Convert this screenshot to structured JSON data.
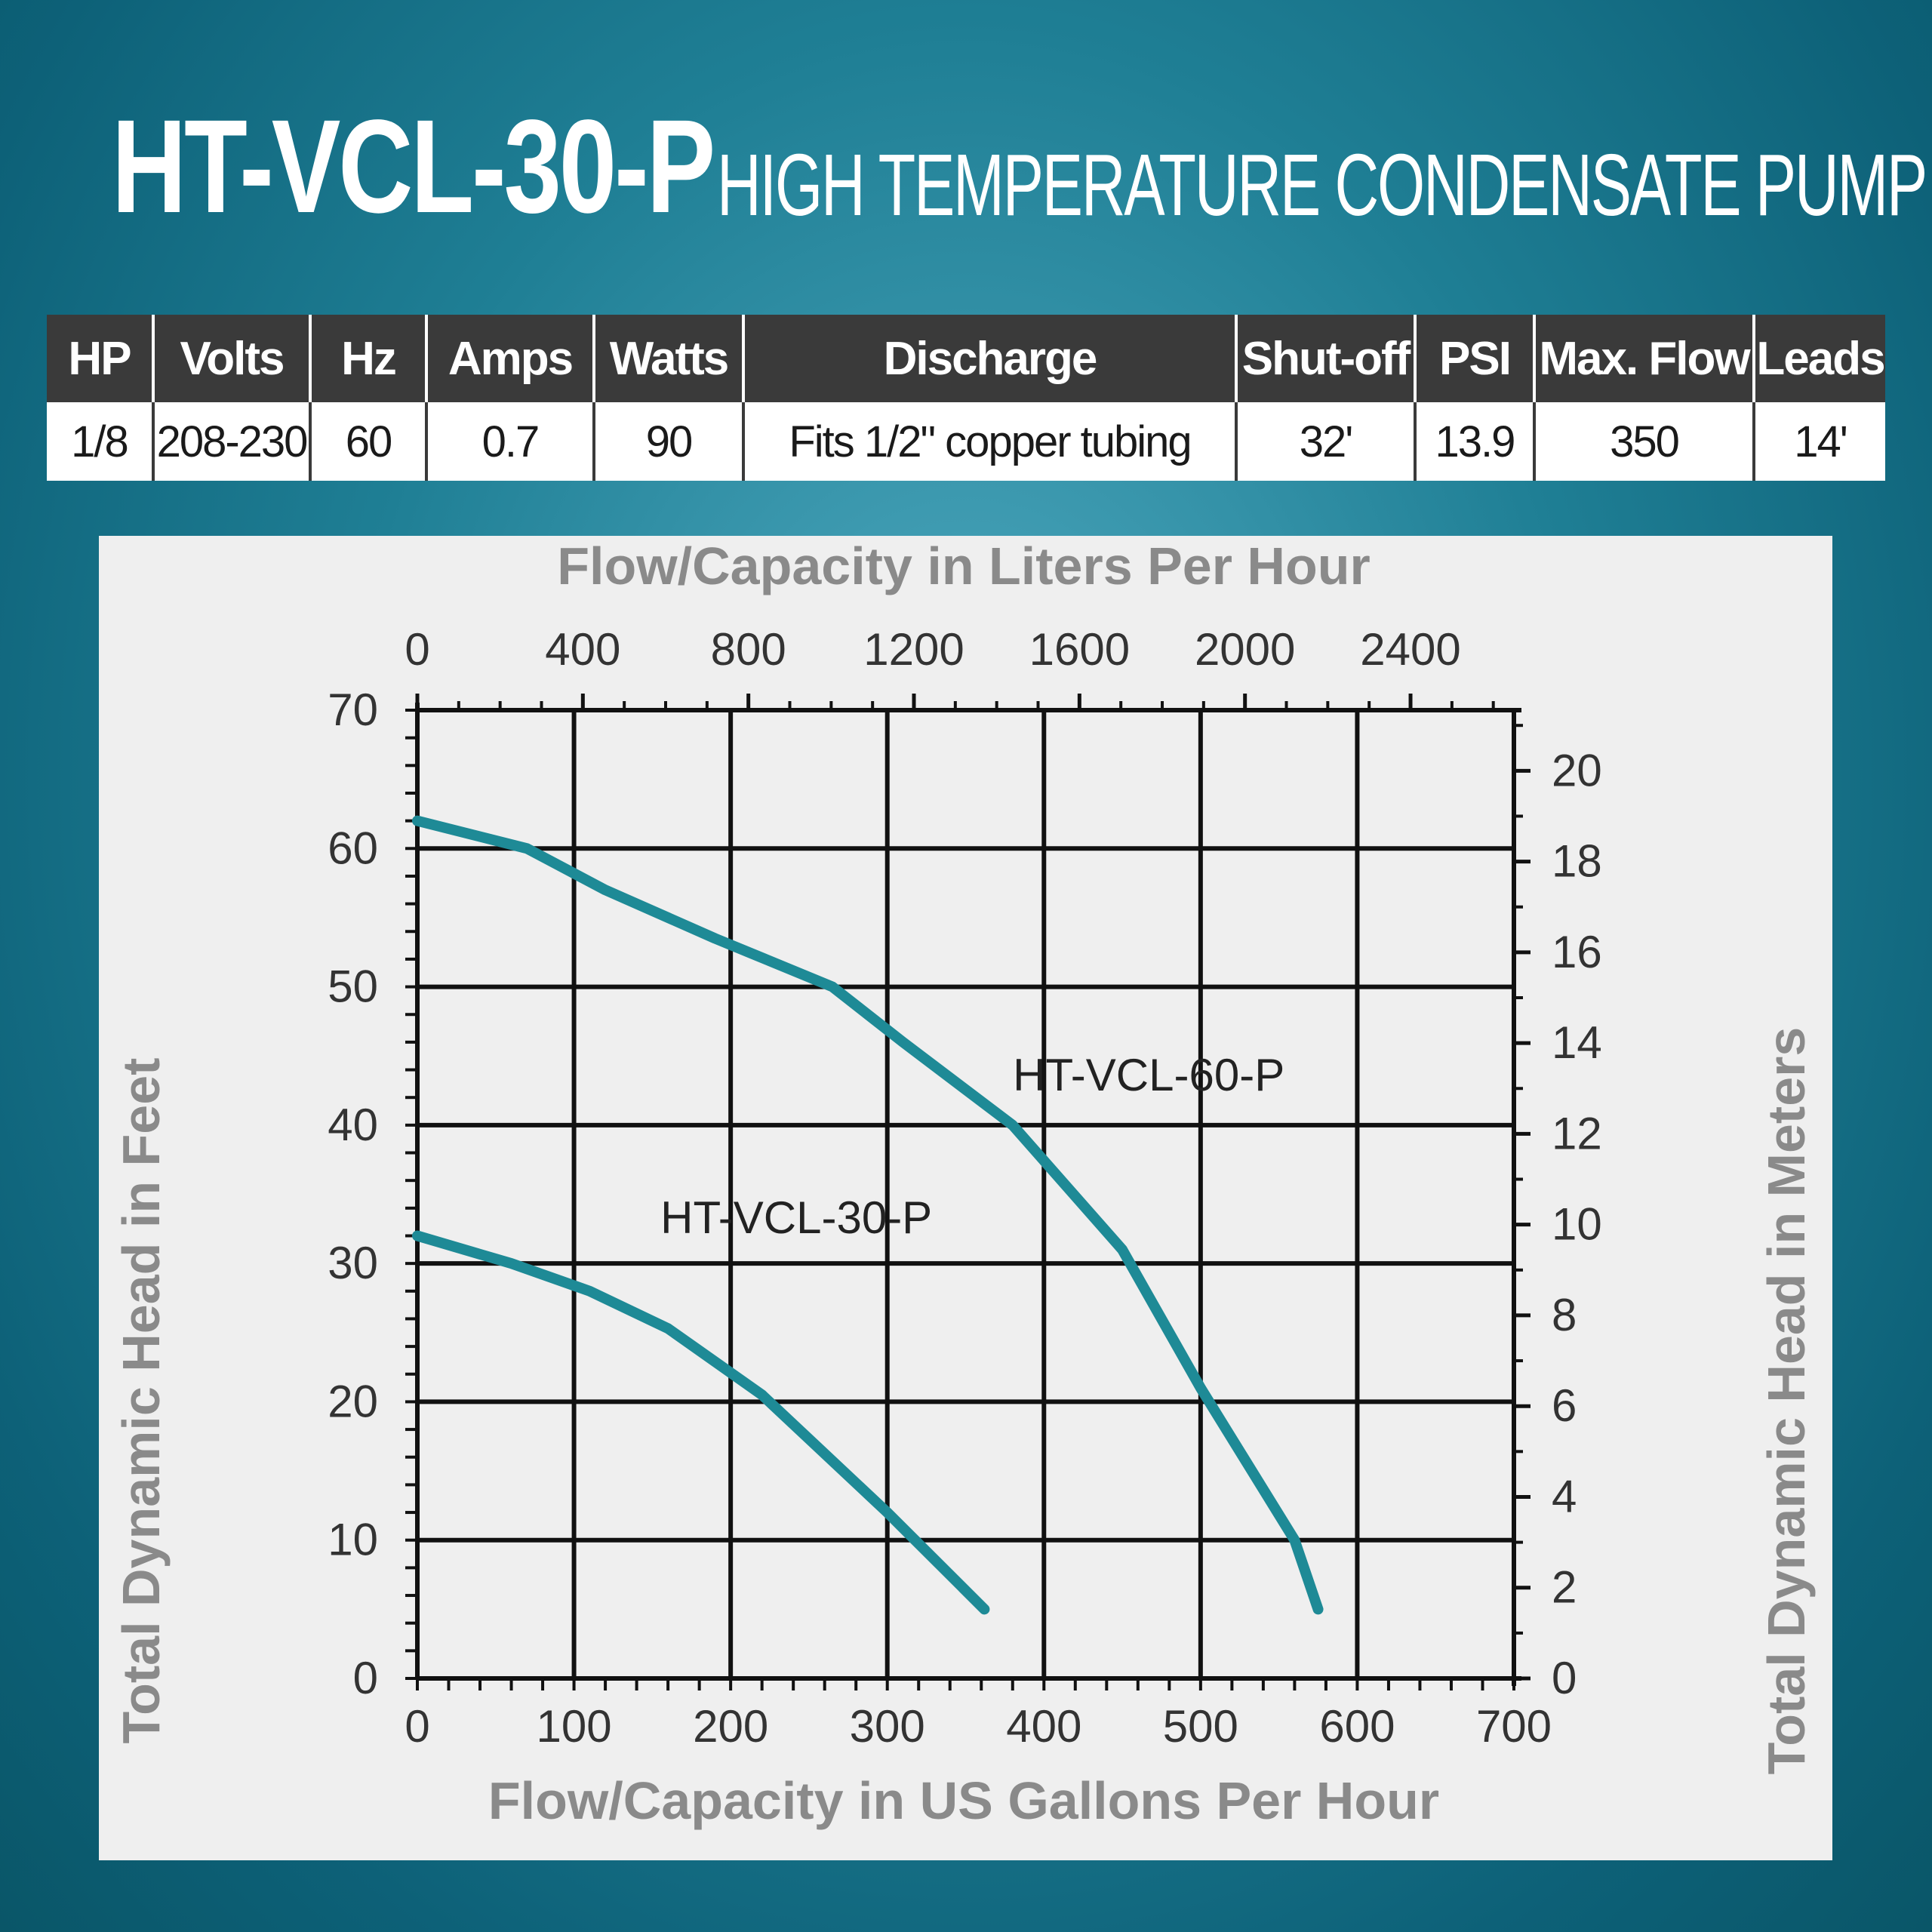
{
  "header": {
    "model": "HT-VCL-30-P",
    "description": "HIGH TEMPERATURE CONDENSATE PUMP"
  },
  "specs": {
    "columns": [
      "HP",
      "Volts",
      "Hz",
      "Amps",
      "Watts",
      "Discharge",
      "Shut-off",
      "PSI",
      "Max. Flow",
      "Leads"
    ],
    "values": [
      "1/8",
      "208-230",
      "60",
      "0.7",
      "90",
      "Fits 1/2\" copper tubing",
      "32'",
      "13.9",
      "350",
      "14'"
    ]
  },
  "colors": {
    "curve": "#1e8a96",
    "header_bg": "#3a3a3a",
    "axis_title": "#8a8a8a"
  },
  "chart_data": {
    "type": "line",
    "title": "",
    "xlabel": "Flow/Capacity in US Gallons Per Hour",
    "ylabel": "Total Dynamic Head in Feet",
    "x2label": "Flow/Capacity in Liters Per Hour",
    "y2label": "Total Dynamic Head in Meters",
    "xlim": [
      0,
      700
    ],
    "ylim": [
      0,
      70
    ],
    "x2lim": [
      0,
      2649.8
    ],
    "y2lim": [
      0,
      21.336
    ],
    "xticks": [
      0,
      100,
      200,
      300,
      400,
      500,
      600,
      700
    ],
    "yticks": [
      0,
      10,
      20,
      30,
      40,
      50,
      60,
      70
    ],
    "x2ticks": [
      0,
      400,
      800,
      1200,
      1600,
      2000,
      2400
    ],
    "y2ticks": [
      0,
      2,
      4,
      6,
      8,
      10,
      12,
      14,
      16,
      18,
      20
    ],
    "grid": true,
    "series": [
      {
        "name": "HT-VCL-60-P",
        "x": [
          0,
          70,
          120,
          190,
          265,
          310,
          380,
          450,
          500,
          560,
          575
        ],
        "y": [
          62,
          60,
          57,
          53.5,
          50,
          46,
          40,
          31,
          21,
          10,
          5
        ]
      },
      {
        "name": "HT-VCL-30-P",
        "x": [
          0,
          60,
          110,
          160,
          220,
          300,
          362
        ],
        "y": [
          32,
          30,
          28,
          25.3,
          20.5,
          12,
          5
        ]
      }
    ]
  }
}
